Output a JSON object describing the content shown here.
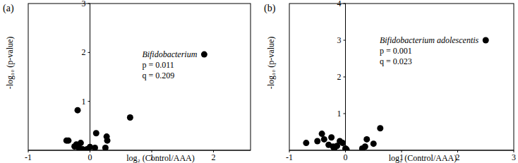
{
  "chart_data": [
    {
      "type": "scatter",
      "title": "(a)",
      "x_label": "log₂ (Control/AAA)",
      "y_label": "-log₁₀ (p-value)",
      "x": [
        -0.38,
        -0.35,
        -0.25,
        -0.22,
        -0.2,
        -0.18,
        -0.15,
        -0.12,
        -0.05,
        0.0,
        0.08,
        0.1,
        0.25,
        0.27,
        0.28,
        0.65,
        1.85
      ],
      "values": [
        0.2,
        0.2,
        0.08,
        0.12,
        0.82,
        0.05,
        0.15,
        0.02,
        0.02,
        0.07,
        0.05,
        0.35,
        0.05,
        0.28,
        0.2,
        0.67,
        1.96
      ],
      "annotations": [
        "Bifidobacterium",
        "p = 0.011",
        "q = 0.209"
      ],
      "color": "#000000",
      "marker": "circle",
      "xlim": [
        -1,
        2.6
      ],
      "xticks": [
        -1,
        0,
        1,
        2
      ],
      "ylim": [
        0,
        3
      ],
      "yticks": [
        1,
        2,
        3
      ]
    },
    {
      "type": "scatter",
      "title": "(b)",
      "x_label": "log₂ (Control/AAA)",
      "y_label": "-log₁₀ (p-value)",
      "x": [
        -0.7,
        -0.5,
        -0.42,
        -0.38,
        -0.3,
        -0.25,
        -0.22,
        -0.2,
        -0.15,
        -0.1,
        -0.05,
        0.0,
        0.02,
        0.3,
        0.35,
        0.38,
        0.5,
        0.62,
        2.5
      ],
      "values": [
        0.2,
        0.25,
        0.45,
        0.3,
        0.15,
        0.35,
        0.1,
        0.05,
        0.12,
        0.25,
        0.2,
        0.05,
        0.02,
        0.05,
        0.1,
        0.3,
        0.18,
        0.6,
        3.0
      ],
      "annotations": [
        "Bifidobacterium adolescentis",
        "p = 0.001",
        "q = 0.023"
      ],
      "color": "#000000",
      "marker": "circle",
      "xlim": [
        -1,
        3
      ],
      "xticks": [
        -1,
        0,
        1,
        2,
        3
      ],
      "ylim": [
        0,
        4
      ],
      "yticks": [
        1,
        2,
        3,
        4
      ]
    }
  ]
}
